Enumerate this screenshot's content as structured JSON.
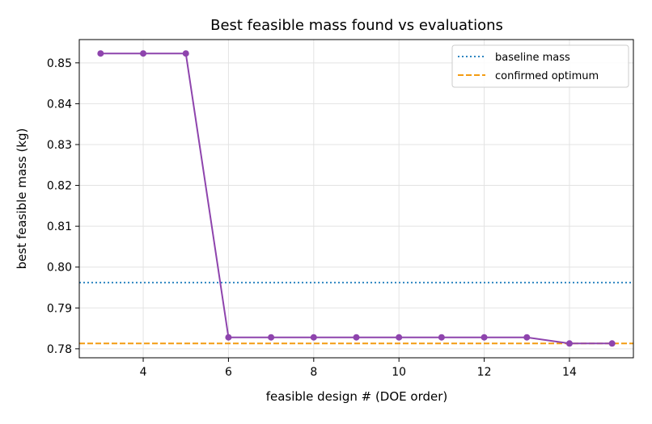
{
  "chart_data": {
    "type": "line",
    "title": "Best feasible mass found vs evaluations",
    "xlabel": "feasible design # (DOE order)",
    "ylabel": "best feasible mass (kg)",
    "xlim": [
      2.5,
      15.5
    ],
    "ylim": [
      0.7778,
      0.8557
    ],
    "x_ticks": [
      4,
      6,
      8,
      10,
      12,
      14
    ],
    "y_ticks": [
      0.78,
      0.79,
      0.8,
      0.81,
      0.82,
      0.83,
      0.84,
      0.85
    ],
    "x_tick_labels": [
      "4",
      "6",
      "8",
      "10",
      "12",
      "14"
    ],
    "y_tick_labels": [
      "0.78",
      "0.79",
      "0.80",
      "0.81",
      "0.82",
      "0.83",
      "0.84",
      "0.85"
    ],
    "grid": true,
    "legend_position": "top-right",
    "series": [
      {
        "color": "#8e44ad",
        "marker": "circle",
        "x": [
          3,
          4,
          5,
          6,
          7,
          8,
          9,
          10,
          11,
          12,
          13,
          14,
          15
        ],
        "y": [
          0.8523,
          0.8523,
          0.8523,
          0.7828,
          0.7828,
          0.7828,
          0.7828,
          0.7828,
          0.7828,
          0.7828,
          0.7828,
          0.7813,
          0.7813
        ]
      }
    ],
    "reference_lines": [
      {
        "name": "baseline mass",
        "y": 0.7962,
        "color": "#2e86c1",
        "style": "dotted"
      },
      {
        "name": "confirmed optimum",
        "y": 0.7813,
        "color": "#f39c12",
        "style": "dashed"
      }
    ]
  }
}
